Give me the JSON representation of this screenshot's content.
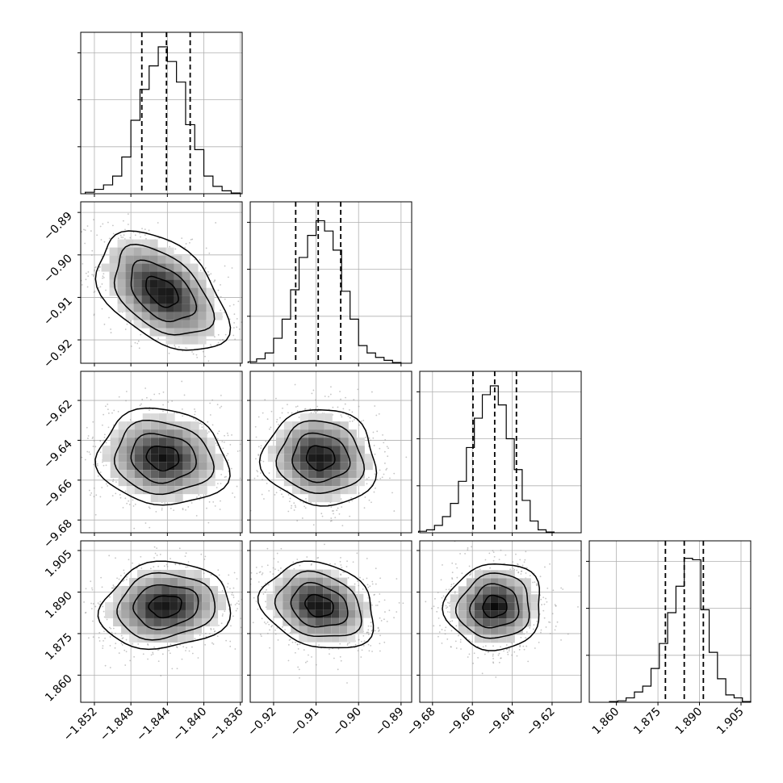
{
  "chart_data": {
    "type": "corner",
    "description_free": true,
    "parameters": [
      {
        "range": [
          -1.8535,
          -1.8358
        ],
        "ticks": [
          -1.852,
          -1.848,
          -1.844,
          -1.84,
          -1.836
        ],
        "tick_labels": [
          "−1.852",
          "−1.848",
          "−1.844",
          "−1.840",
          "−1.836"
        ],
        "quantiles": [
          -1.8468,
          -1.8441,
          -1.8415
        ],
        "hist_bins": [
          -1.8525,
          -1.8515,
          -1.8505,
          -1.8495,
          -1.8485,
          -1.8475,
          -1.8465,
          -1.8455,
          -1.8445,
          -1.8435,
          -1.8425,
          -1.8415,
          -1.8405,
          -1.8395,
          -1.8385,
          -1.8375,
          -1.8365
        ],
        "hist_rel": [
          0.01,
          0.03,
          0.06,
          0.12,
          0.25,
          0.5,
          0.71,
          0.87,
          1.0,
          0.9,
          0.76,
          0.47,
          0.3,
          0.12,
          0.05,
          0.02,
          0.005
        ]
      },
      {
        "range": [
          -0.9255,
          -0.8875
        ],
        "ticks": [
          -0.92,
          -0.91,
          -0.9,
          -0.89
        ],
        "tick_labels": [
          "−0.92",
          "−0.91",
          "−0.90",
          "−0.89"
        ],
        "quantiles": [
          -0.9148,
          -0.9095,
          -0.9042
        ],
        "hist_bins": [
          -0.925,
          -0.923,
          -0.921,
          -0.919,
          -0.917,
          -0.915,
          -0.913,
          -0.911,
          -0.909,
          -0.907,
          -0.905,
          -0.903,
          -0.901,
          -0.899,
          -0.897,
          -0.895,
          -0.893,
          -0.891,
          -0.889
        ],
        "hist_rel": [
          0.01,
          0.03,
          0.07,
          0.17,
          0.3,
          0.5,
          0.72,
          0.87,
          0.97,
          0.9,
          0.77,
          0.49,
          0.3,
          0.12,
          0.07,
          0.04,
          0.02,
          0.005
        ]
      },
      {
        "range": [
          -9.6864,
          -9.6054
        ],
        "ticks": [
          -9.68,
          -9.66,
          -9.64,
          -9.62
        ],
        "tick_labels": [
          "−9.68",
          "−9.66",
          "−9.64",
          "−9.62"
        ],
        "quantiles": [
          -9.6597,
          -9.6488,
          -9.6379
        ],
        "hist_bins": [
          -9.685,
          -9.681,
          -9.677,
          -9.673,
          -9.669,
          -9.665,
          -9.661,
          -9.657,
          -9.653,
          -9.649,
          -9.645,
          -9.641,
          -9.637,
          -9.633,
          -9.629,
          -9.625,
          -9.621
        ],
        "hist_rel": [
          0.01,
          0.02,
          0.05,
          0.11,
          0.2,
          0.35,
          0.58,
          0.78,
          0.94,
          1.0,
          0.87,
          0.64,
          0.43,
          0.22,
          0.08,
          0.02,
          0.005
        ]
      },
      {
        "range": [
          1.8502,
          1.9085
        ],
        "ticks": [
          1.86,
          1.875,
          1.89,
          1.905
        ],
        "tick_labels": [
          "1.860",
          "1.875",
          "1.890",
          "1.905"
        ],
        "quantiles": [
          1.8777,
          1.8845,
          1.8914
        ],
        "hist_bins": [
          1.859,
          1.862,
          1.865,
          1.868,
          1.871,
          1.874,
          1.877,
          1.88,
          1.883,
          1.886,
          1.889,
          1.892,
          1.895,
          1.898,
          1.901,
          1.904,
          1.907
        ],
        "hist_rel": [
          0.005,
          0.01,
          0.03,
          0.07,
          0.11,
          0.23,
          0.4,
          0.61,
          0.79,
          0.98,
          0.97,
          0.63,
          0.34,
          0.16,
          0.05,
          0.03,
          0.005
        ]
      }
    ],
    "pairs": [
      {
        "x": 0,
        "y": 1,
        "center": [
          -1.8446,
          -0.9087
        ],
        "spread": [
          0.0031,
          0.0061
        ],
        "rho": -0.45
      },
      {
        "x": 0,
        "y": 2,
        "center": [
          -1.8445,
          -9.6488
        ],
        "spread": [
          0.0031,
          0.0105
        ],
        "rho": -0.1
      },
      {
        "x": 1,
        "y": 2,
        "center": [
          -0.909,
          -9.6488
        ],
        "spread": [
          0.0058,
          0.0105
        ],
        "rho": -0.05
      },
      {
        "x": 0,
        "y": 3,
        "center": [
          -1.8442,
          1.8849
        ],
        "spread": [
          0.0031,
          0.0068
        ],
        "rho": 0.1
      },
      {
        "x": 1,
        "y": 3,
        "center": [
          -0.9093,
          1.885
        ],
        "spread": [
          0.0058,
          0.0068
        ],
        "rho": -0.2
      },
      {
        "x": 2,
        "y": 3,
        "center": [
          -9.6488,
          1.8848
        ],
        "spread": [
          0.0105,
          0.0068
        ],
        "rho": 0.05
      }
    ],
    "contour_levels_sigma": [
      0.5,
      1.0,
      1.5,
      2.0
    ],
    "grid": true,
    "colors": {
      "line": "#000000",
      "grid": "#b0b0b0",
      "points": "#8c8c8c"
    }
  }
}
